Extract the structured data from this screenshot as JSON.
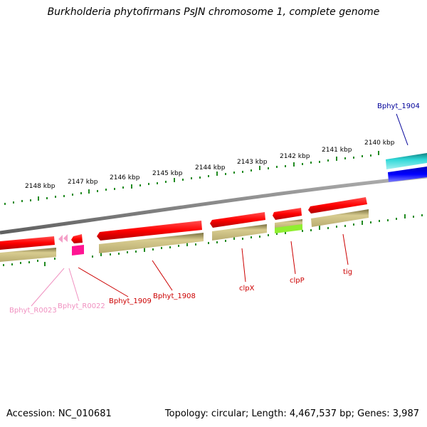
{
  "title": "Burkholderia phytofirmans PsJN chromosome 1, complete genome",
  "footer": {
    "accession": "Accession: NC_010681",
    "summary": "Topology: circular; Length: 4,467,537 bp; Genes: 3,987"
  },
  "colors": {
    "backbone": "#808080",
    "tick": "#228b22",
    "cds": "#ff0000",
    "cds_other_strand": "#c8bc78",
    "trna": "#ff1493",
    "trna_light": "#f4a0c8",
    "cyan_feature": "#20c8c8",
    "blue_feature": "#0000ff",
    "green_feature": "#90ee30",
    "label_red": "#cc0000",
    "label_pink": "#f090c0",
    "label_blue": "#000099"
  },
  "ticks": {
    "labels": [
      "2140 kbp",
      "2141 kbp",
      "2142 kbp",
      "2143 kbp",
      "2144 kbp",
      "2145 kbp",
      "2146 kbp",
      "2147 kbp",
      "2148 kbp"
    ]
  },
  "gene_labels": [
    "Bphyt_1904",
    "tig",
    "clpP",
    "clpX",
    "Bphyt_1908",
    "Bphyt_1909",
    "Bphyt_R0022",
    "Bphyt_R0023"
  ]
}
